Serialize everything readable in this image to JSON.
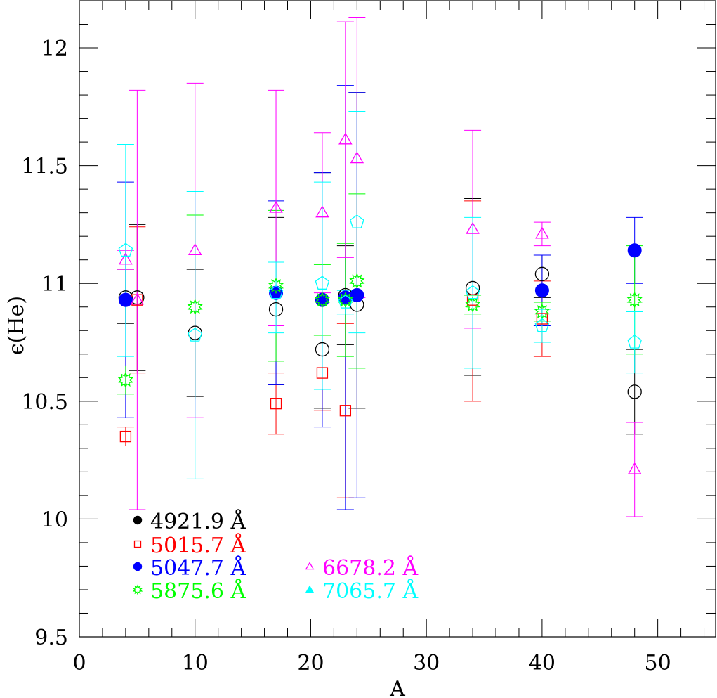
{
  "chart_data": {
    "type": "scatter",
    "title": "",
    "xlabel": "A",
    "ylabel": "ϵ(He)",
    "xlim": [
      0,
      55
    ],
    "ylim": [
      9.5,
      12.2
    ],
    "grid": false,
    "legend_placement": "bottom-left",
    "x_ticks": [
      "0",
      "10",
      "20",
      "30",
      "40",
      "50"
    ],
    "y_ticks": [
      "9.5",
      "10",
      "10.5",
      "11",
      "11.5",
      "12"
    ],
    "series": [
      {
        "name": "4921.9 Å",
        "color": "#000000",
        "marker": "circle-open",
        "legend_marker": "circle-filled",
        "points": [
          {
            "x": 4,
            "y": 10.94,
            "lo": 10.83,
            "hi": 11.06
          },
          {
            "x": 5,
            "y": 10.94,
            "lo": 10.63,
            "hi": 11.25
          },
          {
            "x": 10,
            "y": 10.79,
            "lo": 10.52,
            "hi": 11.06
          },
          {
            "x": 17,
            "y": 10.89,
            "lo": 10.57,
            "hi": 11.28
          },
          {
            "x": 21,
            "y": 10.72,
            "lo": 10.47,
            "hi": 11.47
          },
          {
            "x": 23,
            "y": 10.95,
            "lo": 10.74,
            "hi": 11.16
          },
          {
            "x": 24,
            "y": 10.91,
            "lo": 10.47,
            "hi": 11.81
          },
          {
            "x": 34,
            "y": 10.98,
            "lo": 10.61,
            "hi": 11.36
          },
          {
            "x": 40,
            "y": 11.04,
            "lo": 10.94,
            "hi": 11.12
          },
          {
            "x": 48,
            "y": 10.54,
            "lo": 10.36,
            "hi": 10.72
          }
        ]
      },
      {
        "name": "5015.7 Å",
        "color": "#ff0000",
        "marker": "square-open",
        "legend_marker": "square-open",
        "points": [
          {
            "x": 4,
            "y": 10.35,
            "lo": 10.31,
            "hi": 10.39
          },
          {
            "x": 5,
            "y": 10.93,
            "lo": 10.62,
            "hi": 11.24
          },
          {
            "x": 17,
            "y": 10.49,
            "lo": 10.36,
            "hi": 10.62
          },
          {
            "x": 21,
            "y": 10.62,
            "lo": 10.46,
            "hi": 10.78
          },
          {
            "x": 23,
            "y": 10.46,
            "lo": 10.09,
            "hi": 10.83
          },
          {
            "x": 34,
            "y": 10.93,
            "lo": 10.5,
            "hi": 11.35
          },
          {
            "x": 40,
            "y": 10.85,
            "lo": 10.69,
            "hi": 11.01
          }
        ]
      },
      {
        "name": "5047.7 Å",
        "color": "#0000ff",
        "marker": "circle-filled",
        "legend_marker": "circle-filled",
        "points": [
          {
            "x": 4,
            "y": 10.93,
            "lo": 10.43,
            "hi": 11.43
          },
          {
            "x": 17,
            "y": 10.96,
            "lo": 10.57,
            "hi": 11.35
          },
          {
            "x": 21,
            "y": 10.93,
            "lo": 10.39,
            "hi": 11.47
          },
          {
            "x": 23,
            "y": 10.94,
            "lo": 10.04,
            "hi": 11.84
          },
          {
            "x": 24,
            "y": 10.95,
            "lo": 10.09,
            "hi": 11.81
          },
          {
            "x": 40,
            "y": 10.97,
            "lo": 10.82,
            "hi": 11.12
          },
          {
            "x": 48,
            "y": 11.14,
            "lo": 11.0,
            "hi": 11.28
          }
        ]
      },
      {
        "name": "5875.6 Å",
        "color": "#00ff00",
        "marker": "star-open",
        "legend_marker": "star-open",
        "points": [
          {
            "x": 4,
            "y": 10.59,
            "lo": 10.53,
            "hi": 10.65
          },
          {
            "x": 10,
            "y": 10.9,
            "lo": 10.51,
            "hi": 11.29
          },
          {
            "x": 17,
            "y": 10.99,
            "lo": 10.67,
            "hi": 11.31
          },
          {
            "x": 21,
            "y": 10.93,
            "lo": 10.78,
            "hi": 11.08
          },
          {
            "x": 23,
            "y": 10.93,
            "lo": 10.69,
            "hi": 11.17
          },
          {
            "x": 24,
            "y": 11.01,
            "lo": 10.64,
            "hi": 11.38
          },
          {
            "x": 34,
            "y": 10.91,
            "lo": 10.87,
            "hi": 10.95
          },
          {
            "x": 40,
            "y": 10.88,
            "lo": 10.84,
            "hi": 10.92
          },
          {
            "x": 48,
            "y": 10.93,
            "lo": 10.7,
            "hi": 11.16
          }
        ]
      },
      {
        "name": "6678.2 Å",
        "color": "#ff00ff",
        "marker": "triangle-open",
        "legend_marker": "triangle-open",
        "points": [
          {
            "x": 4,
            "y": 11.1,
            "lo": 11.06,
            "hi": 11.14
          },
          {
            "x": 5,
            "y": 10.93,
            "lo": 10.04,
            "hi": 11.82
          },
          {
            "x": 10,
            "y": 11.14,
            "lo": 10.43,
            "hi": 11.85
          },
          {
            "x": 17,
            "y": 11.32,
            "lo": 10.82,
            "hi": 11.82
          },
          {
            "x": 21,
            "y": 11.3,
            "lo": 10.96,
            "hi": 11.64
          },
          {
            "x": 23,
            "y": 11.61,
            "lo": 11.11,
            "hi": 12.11
          },
          {
            "x": 24,
            "y": 11.53,
            "lo": 10.94,
            "hi": 12.13
          },
          {
            "x": 34,
            "y": 11.23,
            "lo": 10.81,
            "hi": 11.65
          },
          {
            "x": 40,
            "y": 11.21,
            "lo": 11.16,
            "hi": 11.26
          },
          {
            "x": 48,
            "y": 10.21,
            "lo": 10.01,
            "hi": 10.41
          }
        ]
      },
      {
        "name": "7065.7 Å",
        "color": "#00ffff",
        "marker": "pentagon-open",
        "legend_marker": "triangle-filled",
        "points": [
          {
            "x": 4,
            "y": 11.14,
            "lo": 10.69,
            "hi": 11.59
          },
          {
            "x": 10,
            "y": 10.78,
            "lo": 10.17,
            "hi": 11.39
          },
          {
            "x": 17,
            "y": 10.96,
            "lo": 10.79,
            "hi": 11.09
          },
          {
            "x": 21,
            "y": 11.0,
            "lo": 10.55,
            "hi": 11.43
          },
          {
            "x": 23,
            "y": 10.92,
            "lo": 10.87,
            "hi": 10.97
          },
          {
            "x": 24,
            "y": 11.26,
            "lo": 10.79,
            "hi": 11.73
          },
          {
            "x": 34,
            "y": 10.96,
            "lo": 10.64,
            "hi": 11.28
          },
          {
            "x": 40,
            "y": 10.82,
            "lo": 10.75,
            "hi": 10.89
          },
          {
            "x": 48,
            "y": 10.75,
            "lo": 10.62,
            "hi": 10.88
          }
        ]
      }
    ]
  }
}
